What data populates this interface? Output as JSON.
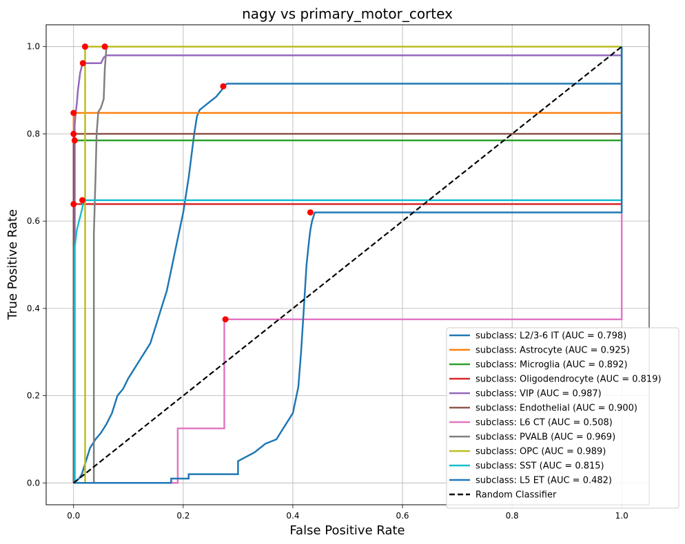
{
  "chart_data": {
    "type": "line",
    "title": "nagy vs primary_motor_cortex",
    "xlabel": "False Positive Rate",
    "ylabel": "True Positive Rate",
    "xlim": [
      -0.05,
      1.05
    ],
    "ylim": [
      -0.05,
      1.05
    ],
    "xticks": [
      "0.0",
      "0.2",
      "0.4",
      "0.6",
      "0.8",
      "1.0"
    ],
    "yticks": [
      "0.0",
      "0.2",
      "0.4",
      "0.6",
      "0.8",
      "1.0"
    ],
    "grid": true,
    "legend_position": "lower-right",
    "series": [
      {
        "name": "subclass: L2/3-6 IT (AUC = 0.798)",
        "color": "#1f77b4",
        "x": [
          0,
          0.005,
          0.01,
          0.015,
          0.02,
          0.025,
          0.03,
          0.04,
          0.05,
          0.06,
          0.07,
          0.08,
          0.09,
          0.1,
          0.11,
          0.12,
          0.13,
          0.14,
          0.15,
          0.16,
          0.17,
          0.18,
          0.19,
          0.2,
          0.21,
          0.215,
          0.22,
          0.225,
          0.23,
          0.24,
          0.25,
          0.26,
          0.27,
          0.275,
          0.28,
          1.0,
          1.0
        ],
        "y": [
          0,
          0.005,
          0.01,
          0.02,
          0.04,
          0.06,
          0.08,
          0.1,
          0.115,
          0.135,
          0.16,
          0.2,
          0.215,
          0.24,
          0.26,
          0.28,
          0.3,
          0.32,
          0.36,
          0.4,
          0.44,
          0.5,
          0.56,
          0.62,
          0.7,
          0.75,
          0.8,
          0.84,
          0.855,
          0.865,
          0.875,
          0.885,
          0.9,
          0.91,
          0.915,
          0.915,
          1.0
        ],
        "opt_point": [
          0.273,
          0.909
        ]
      },
      {
        "name": "subclass: Astrocyte (AUC = 0.925)",
        "color": "#ff7f0e",
        "x": [
          0,
          0,
          1.0,
          1.0
        ],
        "y": [
          0,
          0.848,
          0.848,
          1.0
        ],
        "opt_point": [
          0.0,
          0.848
        ]
      },
      {
        "name": "subclass: Microglia (AUC = 0.892)",
        "color": "#2ca02c",
        "x": [
          0,
          0.002,
          0.002,
          1.0,
          1.0
        ],
        "y": [
          0,
          0,
          0.785,
          0.785,
          1.0
        ],
        "opt_point": [
          0.002,
          0.785
        ]
      },
      {
        "name": "subclass: Oligodendrocyte (AUC = 0.819)",
        "color": "#d62728",
        "x": [
          0,
          0,
          1.0,
          1.0
        ],
        "y": [
          0,
          0.639,
          0.639,
          1.0
        ],
        "opt_point": [
          0.0,
          0.639
        ]
      },
      {
        "name": "subclass: VIP (AUC = 0.987)",
        "color": "#9467bd",
        "x": [
          0,
          0.002,
          0.002,
          0.004,
          0.006,
          0.008,
          0.01,
          0.012,
          0.015,
          0.018,
          0.02,
          0.05,
          0.055,
          0.06,
          1.0,
          1.0
        ],
        "y": [
          0,
          0,
          0.82,
          0.85,
          0.87,
          0.9,
          0.92,
          0.94,
          0.955,
          0.96,
          0.962,
          0.962,
          0.975,
          0.98,
          0.98,
          1.0
        ],
        "opt_point": [
          0.017,
          0.962
        ]
      },
      {
        "name": "subclass: Endothelial (AUC = 0.900)",
        "color": "#8c564b",
        "x": [
          0,
          0,
          1.0,
          1.0
        ],
        "y": [
          0,
          0.8,
          0.8,
          1.0
        ],
        "opt_point": [
          0.0,
          0.8
        ]
      },
      {
        "name": "subclass: L6 CT (AUC = 0.508)",
        "color": "#e377c2",
        "x": [
          0,
          0.19,
          0.19,
          0.275,
          0.275,
          1.0,
          1.0,
          1.0
        ],
        "y": [
          0,
          0,
          0.125,
          0.125,
          0.375,
          0.375,
          0.62,
          1.0
        ],
        "opt_point": [
          0.277,
          0.375
        ]
      },
      {
        "name": "subclass: PVALB (AUC = 0.969)",
        "color": "#7f7f7f",
        "x": [
          0,
          0.037,
          0.037,
          0.04,
          0.042,
          0.045,
          0.05,
          0.055,
          0.057,
          0.06,
          1.0,
          1.0
        ],
        "y": [
          0,
          0,
          0.57,
          0.7,
          0.8,
          0.85,
          0.86,
          0.88,
          0.95,
          1.0,
          1.0,
          1.0
        ],
        "opt_point": [
          0.057,
          1.0
        ]
      },
      {
        "name": "subclass: OPC (AUC = 0.989)",
        "color": "#bcbd22",
        "x": [
          0,
          0.021,
          0.021,
          1.0
        ],
        "y": [
          0,
          0,
          1.0,
          1.0
        ],
        "opt_point": [
          0.021,
          1.0
        ]
      },
      {
        "name": "subclass: SST (AUC = 0.815)",
        "color": "#17becf",
        "x": [
          0,
          0.002,
          0.002,
          0.004,
          0.006,
          0.008,
          0.01,
          0.012,
          0.014,
          0.016,
          0.018,
          1.0,
          1.0
        ],
        "y": [
          0,
          0,
          0.54,
          0.56,
          0.58,
          0.59,
          0.6,
          0.61,
          0.62,
          0.63,
          0.648,
          0.648,
          1.0
        ],
        "opt_point": [
          0.016,
          0.648
        ]
      },
      {
        "name": "subclass: L5 ET (AUC = 0.482)",
        "color": "#1f77b4",
        "x": [
          0,
          0.178,
          0.178,
          0.21,
          0.21,
          0.3,
          0.3,
          0.33,
          0.35,
          0.37,
          0.38,
          0.4,
          0.41,
          0.415,
          0.42,
          0.425,
          0.43,
          0.432,
          0.435,
          0.44,
          1.0,
          1.0
        ],
        "y": [
          0,
          0,
          0.01,
          0.01,
          0.02,
          0.02,
          0.05,
          0.07,
          0.09,
          0.1,
          0.12,
          0.16,
          0.22,
          0.3,
          0.4,
          0.5,
          0.56,
          0.58,
          0.6,
          0.62,
          0.62,
          1.0
        ],
        "opt_point": [
          0.432,
          0.62
        ]
      },
      {
        "name": "Random Classifier",
        "color": "#000000",
        "dashed": true,
        "x": [
          0,
          1
        ],
        "y": [
          0,
          1
        ]
      }
    ],
    "optimal_point_color": "#ff0000"
  }
}
